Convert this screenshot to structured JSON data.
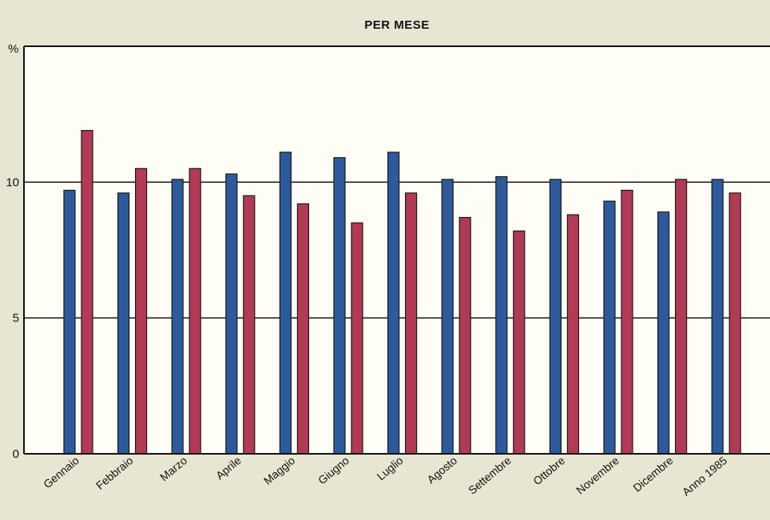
{
  "chart_data": {
    "type": "bar",
    "title": "PER MESE",
    "ylabel": "%",
    "xlabel": "",
    "ylim": [
      0,
      15
    ],
    "yticks": [
      "0",
      "5",
      "10"
    ],
    "yticks_values": [
      0,
      5,
      10
    ],
    "grid": true,
    "categories": [
      "Gennaio",
      "Febbraio",
      "Marzo",
      "Aprile",
      "Maggio",
      "Giugno",
      "Luglio",
      "Agosto",
      "Settembre",
      "Ottobre",
      "Novembre",
      "Dicembre",
      "Anno 1985"
    ],
    "series": [
      {
        "values": [
          9.7,
          9.6,
          10.1,
          10.3,
          11.1,
          10.9,
          11.1,
          10.1,
          10.2,
          10.1,
          9.3,
          8.9,
          10.1
        ]
      },
      {
        "values": [
          11.9,
          10.5,
          10.5,
          9.5,
          9.2,
          8.5,
          9.6,
          8.7,
          8.2,
          8.8,
          9.7,
          10.1,
          9.6
        ]
      }
    ],
    "colors": {
      "series1": "#2c5a9c",
      "series2": "#b23a55",
      "plot_bg": "#fefef6",
      "page_bg": "#e7e6d2",
      "line": "#111111"
    }
  }
}
